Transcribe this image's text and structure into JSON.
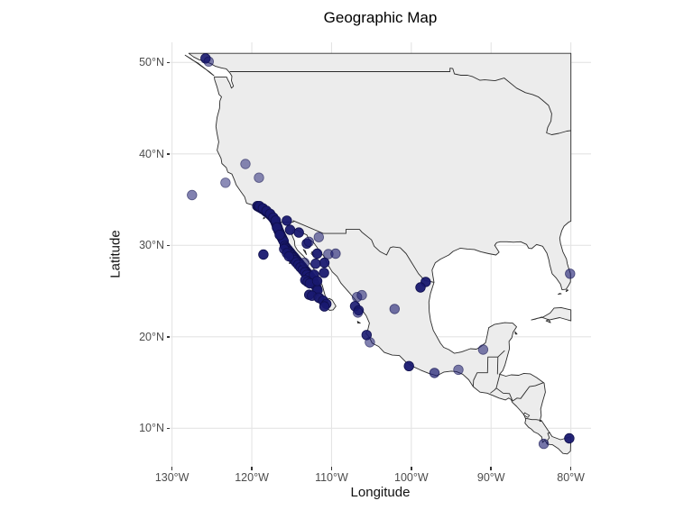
{
  "title": "Geographic Map",
  "axes": {
    "x": {
      "label": "Longitude",
      "ticks": [
        {
          "value": -130,
          "label": "130°W"
        },
        {
          "value": -120,
          "label": "120°W"
        },
        {
          "value": -110,
          "label": "110°W"
        },
        {
          "value": -100,
          "label": "100°W"
        },
        {
          "value": -90,
          "label": "90°W"
        },
        {
          "value": -80,
          "label": "80°W"
        }
      ]
    },
    "y": {
      "label": "Latitude",
      "ticks": [
        {
          "value": 50,
          "label": "50°N"
        },
        {
          "value": 40,
          "label": "40°N"
        },
        {
          "value": 30,
          "label": "30°N"
        },
        {
          "value": 20,
          "label": "20°N"
        },
        {
          "value": 10,
          "label": "10°N"
        }
      ]
    }
  },
  "colors": {
    "point": "#191970",
    "point_stroke": "#10104d",
    "land": "#ececec",
    "coast": "#2b2b2b",
    "grid": "#e4e4e4",
    "tick_label": "#4d4d4d",
    "background": "#ffffff"
  },
  "map": {
    "region": "North America, Mexico, Central America and Caribbean",
    "clip": {
      "east_lon": -80,
      "north_lat": 51
    }
  },
  "chart_data": {
    "type": "scatter",
    "title": "Geographic Map",
    "xlabel": "Longitude",
    "ylabel": "Latitude",
    "xlim": [
      -130.3,
      -77.5
    ],
    "ylim": [
      5.8,
      52.2
    ],
    "grid": true,
    "legend": false,
    "marker": {
      "shape": "circle",
      "radius_px": 5.3,
      "color": "#191970",
      "alpha_levels": [
        0.5,
        0.75,
        0.95
      ]
    },
    "points_format": "[longitude_deg, latitude_deg, opacity]",
    "points": [
      [
        -119.3,
        34.3,
        0.95
      ],
      [
        -119.15,
        34.22,
        0.95
      ],
      [
        -119.0,
        34.15,
        0.95
      ],
      [
        -118.85,
        34.08,
        0.95
      ],
      [
        -118.7,
        34.0,
        0.95
      ],
      [
        -118.55,
        33.92,
        0.95
      ],
      [
        -118.4,
        33.84,
        0.95
      ],
      [
        -118.25,
        33.72,
        0.95
      ],
      [
        -118.1,
        33.62,
        0.95
      ],
      [
        -117.95,
        33.52,
        0.95
      ],
      [
        -117.8,
        33.42,
        0.95
      ],
      [
        -117.65,
        33.3,
        0.95
      ],
      [
        -117.5,
        33.18,
        0.95
      ],
      [
        -117.38,
        33.05,
        0.95
      ],
      [
        -117.26,
        32.92,
        0.95
      ],
      [
        -117.15,
        32.78,
        0.95
      ],
      [
        -117.05,
        32.6,
        0.95
      ],
      [
        -116.97,
        32.42,
        0.95
      ],
      [
        -116.9,
        32.25,
        0.95
      ],
      [
        -116.83,
        32.08,
        0.95
      ],
      [
        -116.76,
        31.92,
        0.95
      ],
      [
        -116.7,
        31.76,
        0.95
      ],
      [
        -116.63,
        31.6,
        0.95
      ],
      [
        -116.55,
        31.45,
        0.95
      ],
      [
        -116.47,
        31.3,
        0.95
      ],
      [
        -116.4,
        31.15,
        0.95
      ],
      [
        -116.32,
        31.0,
        0.95
      ],
      [
        -116.24,
        30.86,
        0.95
      ],
      [
        -116.16,
        30.72,
        0.95
      ],
      [
        -116.08,
        30.58,
        0.95
      ],
      [
        -116.0,
        30.44,
        0.95
      ],
      [
        -119.05,
        34.3,
        0.9
      ],
      [
        -118.6,
        34.05,
        0.9
      ],
      [
        -118.15,
        33.78,
        0.9
      ],
      [
        -117.7,
        33.45,
        0.9
      ],
      [
        -117.3,
        33.05,
        0.9
      ],
      [
        -117.0,
        32.72,
        0.9
      ],
      [
        -116.85,
        31.95,
        0.9
      ],
      [
        -116.5,
        31.15,
        0.9
      ],
      [
        -115.85,
        29.95,
        0.95
      ],
      [
        -115.72,
        29.8,
        0.95
      ],
      [
        -115.6,
        29.66,
        0.95
      ],
      [
        -115.47,
        29.52,
        0.95
      ],
      [
        -115.34,
        29.38,
        0.95
      ],
      [
        -115.2,
        29.24,
        0.95
      ],
      [
        -115.07,
        29.1,
        0.95
      ],
      [
        -114.94,
        28.96,
        0.95
      ],
      [
        -114.8,
        28.82,
        0.95
      ],
      [
        -114.67,
        28.68,
        0.95
      ],
      [
        -114.54,
        28.54,
        0.95
      ],
      [
        -114.4,
        28.4,
        0.95
      ],
      [
        -114.27,
        28.26,
        0.95
      ],
      [
        -114.13,
        28.12,
        0.95
      ],
      [
        -114.0,
        27.98,
        0.95
      ],
      [
        -113.87,
        27.84,
        0.95
      ],
      [
        -113.73,
        27.7,
        0.95
      ],
      [
        -113.6,
        27.56,
        0.95
      ],
      [
        -113.47,
        27.42,
        0.95
      ],
      [
        -113.33,
        27.28,
        0.95
      ],
      [
        -113.2,
        27.14,
        0.95
      ],
      [
        -113.07,
        27.0,
        0.95
      ],
      [
        -112.93,
        26.86,
        0.95
      ],
      [
        -112.8,
        26.72,
        0.95
      ],
      [
        -112.67,
        26.58,
        0.95
      ],
      [
        -112.53,
        26.44,
        0.95
      ],
      [
        -112.4,
        26.3,
        0.95
      ],
      [
        -115.5,
        29.3,
        0.9
      ],
      [
        -115.25,
        29.0,
        0.9
      ],
      [
        -115.0,
        28.7,
        0.9
      ],
      [
        -114.72,
        28.42,
        0.9
      ],
      [
        -114.45,
        28.15,
        0.9
      ],
      [
        -114.18,
        27.88,
        0.9
      ],
      [
        -113.9,
        27.6,
        0.9
      ],
      [
        -113.62,
        27.32,
        0.9
      ],
      [
        -113.35,
        27.05,
        0.9
      ],
      [
        -113.08,
        26.78,
        0.9
      ],
      [
        -112.8,
        26.5,
        0.9
      ],
      [
        -115.95,
        29.6,
        0.85
      ],
      [
        -115.6,
        29.15,
        0.85
      ],
      [
        -115.35,
        28.8,
        0.85
      ],
      [
        -112.3,
        26.15,
        0.95
      ],
      [
        -112.2,
        25.98,
        0.95
      ],
      [
        -112.1,
        25.8,
        0.95
      ],
      [
        -112.0,
        25.62,
        0.95
      ],
      [
        -111.92,
        25.45,
        0.95
      ],
      [
        -111.84,
        25.28,
        0.95
      ],
      [
        -111.76,
        25.1,
        0.95
      ],
      [
        -113.3,
        26.2,
        0.95
      ],
      [
        -113.0,
        26.0,
        0.95
      ],
      [
        -112.72,
        25.85,
        0.95
      ],
      [
        -112.8,
        24.6,
        0.95
      ],
      [
        -112.45,
        24.5,
        0.9
      ],
      [
        -111.55,
        24.25,
        0.95
      ],
      [
        -111.65,
        24.3,
        0.55
      ],
      [
        -111.05,
        23.95,
        0.95
      ],
      [
        -110.65,
        23.6,
        0.95
      ],
      [
        -110.9,
        23.32,
        0.95
      ],
      [
        -125.8,
        50.45,
        0.9
      ],
      [
        -125.4,
        50.1,
        0.55
      ],
      [
        -127.5,
        35.5,
        0.55
      ],
      [
        -123.3,
        36.85,
        0.5
      ],
      [
        -120.8,
        38.9,
        0.5
      ],
      [
        -119.1,
        37.4,
        0.5
      ],
      [
        -118.55,
        29.0,
        0.95
      ],
      [
        -115.6,
        32.7,
        0.95
      ],
      [
        -115.2,
        31.7,
        0.95
      ],
      [
        -114.1,
        31.4,
        0.95
      ],
      [
        -113.1,
        30.2,
        0.9
      ],
      [
        -112.85,
        30.4,
        0.6
      ],
      [
        -111.6,
        30.9,
        0.55
      ],
      [
        -111.8,
        29.1,
        0.95
      ],
      [
        -110.4,
        29.05,
        0.55
      ],
      [
        -109.5,
        29.1,
        0.6
      ],
      [
        -110.9,
        28.1,
        0.95
      ],
      [
        -112.0,
        28.0,
        0.9
      ],
      [
        -113.4,
        28.1,
        0.55
      ],
      [
        -112.2,
        26.8,
        0.95
      ],
      [
        -111.8,
        26.1,
        0.95
      ],
      [
        -110.95,
        27.0,
        0.95
      ],
      [
        -106.8,
        24.35,
        0.55
      ],
      [
        -106.2,
        24.55,
        0.55
      ],
      [
        -107.05,
        23.35,
        0.9
      ],
      [
        -106.6,
        22.9,
        0.9
      ],
      [
        -106.7,
        22.65,
        0.6
      ],
      [
        -102.1,
        23.05,
        0.6
      ],
      [
        -105.6,
        20.2,
        0.9
      ],
      [
        -105.2,
        19.4,
        0.55
      ],
      [
        -100.3,
        16.8,
        0.95
      ],
      [
        -97.1,
        16.05,
        0.7
      ],
      [
        -94.1,
        16.4,
        0.55
      ],
      [
        -91.0,
        18.6,
        0.55
      ],
      [
        -98.2,
        26.0,
        0.95
      ],
      [
        -98.85,
        25.4,
        0.95
      ],
      [
        -80.1,
        26.9,
        0.6
      ],
      [
        -83.4,
        8.3,
        0.6
      ],
      [
        -80.2,
        8.9,
        0.95
      ]
    ]
  }
}
